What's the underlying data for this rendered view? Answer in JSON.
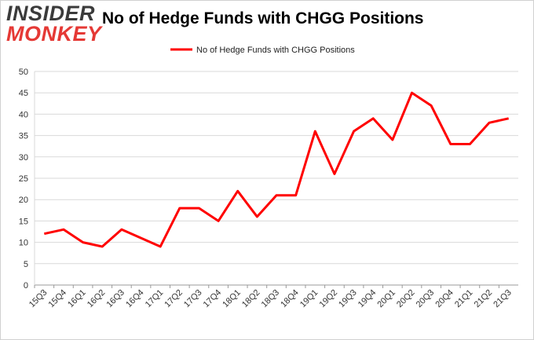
{
  "logo": {
    "line1": "INSIDER",
    "line2": "MONKEY"
  },
  "chart_data": {
    "type": "line",
    "title": "No of Hedge Funds with CHGG Positions",
    "categories": [
      "15Q3",
      "15Q4",
      "16Q1",
      "16Q2",
      "16Q3",
      "16Q4",
      "17Q1",
      "17Q2",
      "17Q3",
      "17Q4",
      "18Q1",
      "18Q2",
      "18Q3",
      "18Q4",
      "19Q1",
      "19Q2",
      "19Q3",
      "19Q4",
      "20Q1",
      "20Q2",
      "20Q3",
      "20Q4",
      "21Q1",
      "21Q2",
      "21Q3"
    ],
    "series": [
      {
        "name": "No of Hedge Funds with CHGG Positions",
        "color": "#ff0000",
        "values": [
          12,
          13,
          10,
          9,
          13,
          11,
          9,
          18,
          18,
          15,
          22,
          16,
          21,
          21,
          36,
          26,
          36,
          39,
          34,
          45,
          42,
          33,
          33,
          38,
          39
        ]
      }
    ],
    "yticks": [
      "0",
      "5",
      "10",
      "15",
      "20",
      "25",
      "30",
      "35",
      "40",
      "45",
      "50"
    ],
    "ylim": [
      0,
      50
    ],
    "grid": true,
    "legend_position": "top-center",
    "xlabel": "",
    "ylabel": ""
  }
}
